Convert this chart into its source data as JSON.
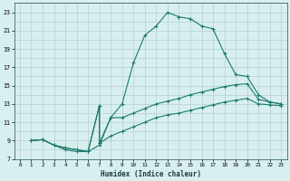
{
  "xlabel": "Humidex (Indice chaleur)",
  "line_color": "#1a7a6e",
  "bg_color": "#d8efef",
  "grid_color": "#b8cece",
  "xlim": [
    -0.5,
    23.5
  ],
  "ylim": [
    7,
    24
  ],
  "xtick_labels": [
    "0",
    "1",
    "2",
    "3",
    "4",
    "5",
    "6",
    "7",
    "8",
    "9",
    "10",
    "11",
    "12",
    "13",
    "14",
    "15",
    "16",
    "17",
    "18",
    "19",
    "20",
    "21",
    "22",
    "23"
  ],
  "xtick_vals": [
    0,
    1,
    2,
    3,
    4,
    5,
    6,
    7,
    8,
    9,
    10,
    11,
    12,
    13,
    14,
    15,
    16,
    17,
    18,
    19,
    20,
    21,
    22,
    23
  ],
  "ytick_vals": [
    7,
    9,
    11,
    13,
    15,
    17,
    19,
    21,
    23
  ],
  "curve1_x": [
    1,
    2,
    3,
    4,
    5,
    6,
    7,
    8,
    9,
    10,
    11,
    12,
    13,
    14,
    15,
    16,
    17,
    18,
    19,
    20,
    21,
    22,
    23
  ],
  "curve1_y": [
    9.0,
    9.1,
    8.5,
    8.0,
    7.8,
    7.8,
    8.5,
    11.5,
    13.0,
    17.5,
    20.5,
    21.5,
    23.0,
    22.5,
    22.3,
    21.5,
    21.2,
    18.5,
    16.2,
    16.0,
    14.0,
    13.2,
    13.0
  ],
  "curve2_x": [
    1,
    2,
    3,
    4,
    5,
    6,
    7,
    7,
    8,
    9,
    10,
    11,
    12,
    13,
    14,
    15,
    16,
    17,
    18,
    19,
    20,
    21,
    22,
    23
  ],
  "curve2_y": [
    9.0,
    9.1,
    8.5,
    8.2,
    8.0,
    7.8,
    12.8,
    8.7,
    11.5,
    11.5,
    12.0,
    12.5,
    13.0,
    13.3,
    13.6,
    14.0,
    14.3,
    14.6,
    14.9,
    15.1,
    15.2,
    13.5,
    13.2,
    13.0
  ],
  "curve3_x": [
    1,
    2,
    3,
    4,
    5,
    6,
    7,
    7,
    8,
    9,
    10,
    11,
    12,
    13,
    14,
    15,
    16,
    17,
    18,
    19,
    20,
    21,
    22,
    23
  ],
  "curve3_y": [
    9.0,
    9.1,
    8.5,
    8.2,
    8.0,
    7.8,
    12.8,
    8.7,
    9.5,
    10.0,
    10.5,
    11.0,
    11.5,
    11.8,
    12.0,
    12.3,
    12.6,
    12.9,
    13.2,
    13.4,
    13.6,
    13.0,
    12.9,
    12.8
  ]
}
